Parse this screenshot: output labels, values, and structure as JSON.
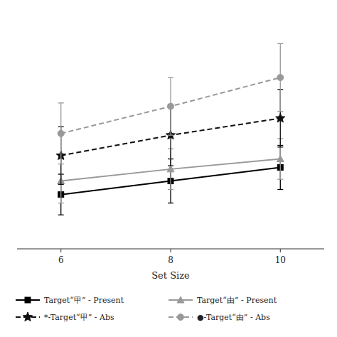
{
  "chart_data": {
    "type": "line",
    "x_label": "Set Size",
    "x": [
      6,
      8,
      10
    ],
    "xlim": [
      5.2,
      10.8
    ],
    "xticks": [
      6,
      8,
      10
    ],
    "ylim": [
      400,
      1100
    ],
    "tick_labels": "x",
    "grid": false,
    "legend": "bottom",
    "series": [
      {
        "name": "Target“甲” - Present",
        "color": "#000000",
        "marker": "square",
        "line_style": "solid",
        "values": [
          560,
          600,
          640
        ],
        "errors": [
          60,
          65,
          65
        ]
      },
      {
        "name": "Target“由” - Present",
        "color": "#999999",
        "marker": "triangle",
        "line_style": "solid",
        "values": [
          600,
          635,
          665
        ],
        "errors": [
          65,
          60,
          60
        ]
      },
      {
        "name": "*-Target“甲” - Abs",
        "color": "#111111",
        "marker": "star",
        "line_style": "dashed",
        "values": [
          675,
          735,
          785
        ],
        "errors": [
          85,
          90,
          85
        ]
      },
      {
        "name": "●-Target“由” - Abs",
        "color": "#999999",
        "marker": "circle",
        "line_style": "dashed",
        "values": [
          740,
          820,
          905
        ],
        "errors": [
          90,
          85,
          100
        ]
      }
    ]
  }
}
